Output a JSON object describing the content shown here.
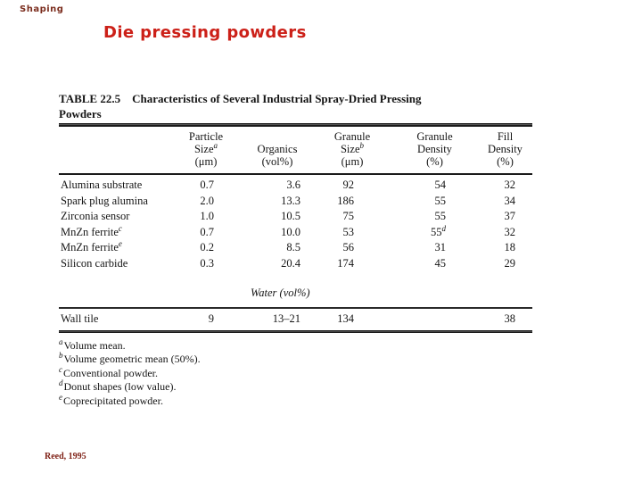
{
  "slide": {
    "eyebrow": "Shaping",
    "title": "Die pressing powders",
    "credit": "Reed, 1995"
  },
  "table": {
    "caption_label": "TABLE 22.5",
    "caption_rest": "Characteristics of Several Industrial Spray-Dried Pressing",
    "caption_line2": "Powders",
    "columns": [
      {
        "l1": "Particle",
        "l2": "Size",
        "sup": "a",
        "l3": "(μm)"
      },
      {
        "l1": "",
        "l2": "Organics",
        "sup": "",
        "l3": "(vol%)"
      },
      {
        "l1": "Granule",
        "l2": "Size",
        "sup": "b",
        "l3": "(μm)"
      },
      {
        "l1": "Granule",
        "l2": "Density",
        "sup": "",
        "l3": "(%)"
      },
      {
        "l1": "Fill",
        "l2": "Density",
        "sup": "",
        "l3": "(%)"
      }
    ],
    "rows": [
      {
        "label": "Alumina substrate",
        "label_sup": "",
        "particle": "0.7",
        "organics": "3.6",
        "granule_size": "92",
        "granule_density": "54",
        "granule_density_sup": "",
        "fill": "32"
      },
      {
        "label": "Spark plug alumina",
        "label_sup": "",
        "particle": "2.0",
        "organics": "13.3",
        "granule_size": "186",
        "granule_density": "55",
        "granule_density_sup": "",
        "fill": "34"
      },
      {
        "label": "Zirconia sensor",
        "label_sup": "",
        "particle": "1.0",
        "organics": "10.5",
        "granule_size": "75",
        "granule_density": "55",
        "granule_density_sup": "",
        "fill": "37"
      },
      {
        "label": "MnZn ferrite",
        "label_sup": "c",
        "particle": "0.7",
        "organics": "10.0",
        "granule_size": "53",
        "granule_density": "55",
        "granule_density_sup": "d",
        "fill": "32"
      },
      {
        "label": "MnZn ferrite",
        "label_sup": "e",
        "particle": "0.2",
        "organics": "8.5",
        "granule_size": "56",
        "granule_density": "31",
        "granule_density_sup": "",
        "fill": "18"
      },
      {
        "label": "Silicon carbide",
        "label_sup": "",
        "particle": "0.3",
        "organics": "20.4",
        "granule_size": "174",
        "granule_density": "45",
        "granule_density_sup": "",
        "fill": "29"
      }
    ],
    "water_section_label": "Water (vol%)",
    "wall_tile_row": {
      "label": "Wall tile",
      "particle": "9",
      "organics": "13–21",
      "granule_size": "134",
      "granule_density": "",
      "fill": "38"
    },
    "footnotes": [
      {
        "sup": "a",
        "text": "Volume mean."
      },
      {
        "sup": "b",
        "text": "Volume geometric mean (50%)."
      },
      {
        "sup": "c",
        "text": "Conventional powder."
      },
      {
        "sup": "d",
        "text": "Donut shapes (low value)."
      },
      {
        "sup": "e",
        "text": "Coprecipitated powder."
      }
    ]
  }
}
